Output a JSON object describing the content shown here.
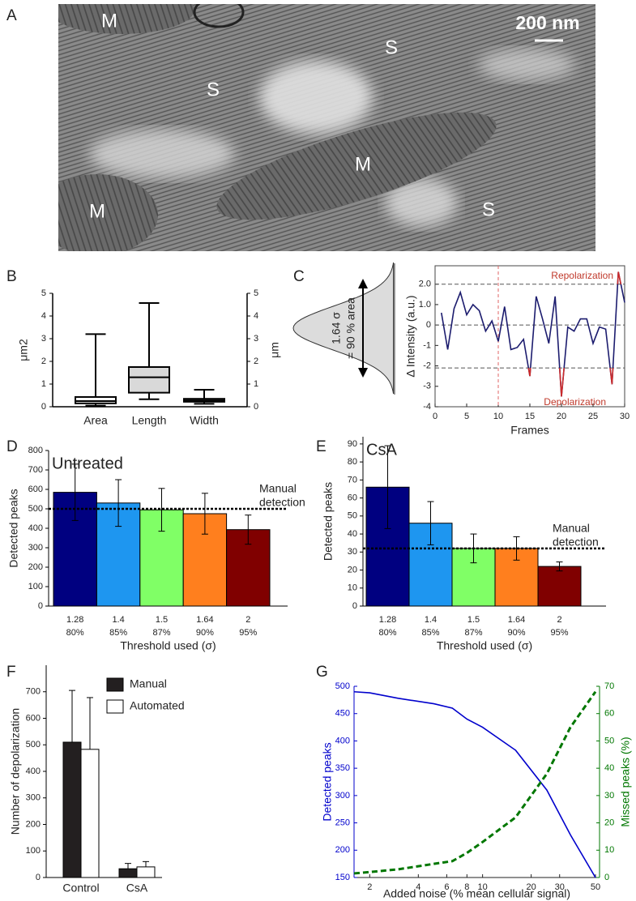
{
  "chart_data": [
    {
      "panel": "A",
      "type": "image",
      "labels": [
        "M",
        "S",
        "S",
        "M",
        "M",
        "S"
      ],
      "scale_bar": "200 nm"
    },
    {
      "panel": "B",
      "type": "box",
      "categories": [
        "Area",
        "Length",
        "Width"
      ],
      "boxes": [
        {
          "whisker_low": 0.05,
          "q1": 0.15,
          "median": 0.25,
          "q3": 0.43,
          "whisker_high": 3.2,
          "fill": "#ffffff"
        },
        {
          "whisker_low": 0.33,
          "q1": 0.62,
          "median": 1.3,
          "q3": 1.75,
          "whisker_high": 4.57,
          "fill": "#d9d9d9"
        },
        {
          "whisker_low": 0.13,
          "q1": 0.22,
          "median": 0.28,
          "q3": 0.35,
          "whisker_high": 0.75,
          "fill": "#ffffff",
          "axis": "y2"
        }
      ],
      "y_label": "μm2",
      "y2_label": "μm",
      "ylim": [
        0,
        5
      ],
      "yticks": [
        0,
        1,
        2,
        3,
        4,
        5
      ],
      "y2lim": [
        0,
        5
      ],
      "y2ticks": [
        0,
        1,
        2,
        3,
        4,
        5
      ]
    },
    {
      "panel": "C",
      "type": "line",
      "distribution_labels": [
        "1.64 σ",
        "= 90 % area"
      ],
      "x": [
        1,
        2,
        3,
        4,
        5,
        6,
        7,
        8,
        9,
        10,
        11,
        12,
        13,
        14,
        15,
        16,
        17,
        18,
        19,
        20,
        21,
        22,
        23,
        24,
        25,
        26,
        27,
        28,
        29,
        30
      ],
      "series": [
        {
          "color": "#1c1c6e",
          "values": [
            0.6,
            -1.2,
            0.8,
            1.6,
            0.5,
            1.0,
            0.7,
            -0.3,
            0.2,
            -0.8,
            0.9,
            -1.2,
            -1.1,
            -0.7,
            -2.5,
            1.4,
            0.3,
            -0.9,
            1.4,
            -3.5,
            -0.1,
            -0.3,
            0.3,
            0.3,
            -0.9,
            -0.1,
            -0.2,
            -2.9,
            2.6,
            1.1
          ]
        }
      ],
      "highlight_color": "#cc2b2b",
      "hlines": [
        2.0,
        0,
        -2.1
      ],
      "vline": 10,
      "vline_color": "#e06666",
      "annotations": [
        "Repolarization",
        "Depolarization"
      ],
      "annotation_color": "#c0392b",
      "x_label": "Frames",
      "y_label": "Δ Intensity (a.u.)",
      "xlim": [
        0,
        30
      ],
      "xticks": [
        0,
        5,
        10,
        15,
        20,
        25,
        30
      ],
      "ylim": [
        -4,
        2.9
      ],
      "yticks": [
        {
          "value": 2,
          "label": "2.0"
        },
        {
          "value": 1,
          "label": "1.0"
        },
        0,
        -1,
        -2,
        -3,
        -4
      ]
    },
    {
      "panel": "D",
      "type": "bar",
      "title": "Untreated",
      "categories": [
        "1.28",
        "1.4",
        "1.5",
        "1.64",
        "2"
      ],
      "category_sublabels": [
        "80%",
        "85%",
        "87%",
        "90%",
        "95%"
      ],
      "values": [
        585,
        530,
        495,
        475,
        393
      ],
      "errors": [
        145,
        120,
        110,
        105,
        75
      ],
      "colors": [
        "#000080",
        "#1e96f0",
        "#80ff66",
        "#ff7f1e",
        "#800000"
      ],
      "reference_line": 500,
      "reference_label": [
        "Manual",
        "detection"
      ],
      "x_label": "Threshold used (σ)",
      "y_label": "Detected peaks",
      "ylim": [
        0,
        800
      ],
      "yticks": [
        0,
        100,
        200,
        300,
        400,
        500,
        600,
        700,
        800
      ]
    },
    {
      "panel": "E",
      "type": "bar",
      "title": "CsA",
      "categories": [
        "1.28",
        "1.4",
        "1.5",
        "1.64",
        "2"
      ],
      "category_sublabels": [
        "80%",
        "85%",
        "87%",
        "90%",
        "95%"
      ],
      "values": [
        66,
        46,
        32,
        32,
        22
      ],
      "errors": [
        23,
        12,
        8,
        6.5,
        2.5
      ],
      "colors": [
        "#000080",
        "#1e96f0",
        "#80ff66",
        "#ff7f1e",
        "#800000"
      ],
      "reference_line": 32,
      "reference_label": [
        "Manual",
        "detection"
      ],
      "x_label": "Threshold used (σ)",
      "y_label": "Detected peaks",
      "ylim": [
        0,
        94
      ],
      "yticks": [
        0,
        10,
        20,
        30,
        40,
        50,
        60,
        70,
        80,
        90
      ]
    },
    {
      "panel": "F",
      "type": "bar",
      "categories": [
        "Control",
        "CsA"
      ],
      "series": [
        {
          "name": "Manual",
          "color": "#231f20",
          "values": [
            510,
            33
          ],
          "errors": [
            195,
            20
          ]
        },
        {
          "name": "Automated",
          "color": "#ffffff",
          "values": [
            483,
            40
          ],
          "errors": [
            195,
            20
          ]
        }
      ],
      "y_label": "Number of depolarization",
      "ylim": [
        0,
        800
      ],
      "yticks": [
        0,
        100,
        200,
        300,
        400,
        500,
        600,
        700
      ]
    },
    {
      "panel": "G",
      "type": "line",
      "log_x": true,
      "x": [
        1.6,
        2,
        3,
        5,
        6.5,
        8,
        10,
        16,
        25,
        35,
        50
      ],
      "series": [
        {
          "color": "#0000cc",
          "values": [
            490,
            488,
            478,
            468,
            460,
            440,
            425,
            383,
            310,
            228,
            150
          ]
        },
        {
          "color": "#007700",
          "dash": true,
          "axis": "y2",
          "values": [
            1.5,
            2,
            3,
            5,
            6,
            9,
            13,
            22,
            38,
            55,
            68
          ]
        }
      ],
      "x_label": "Added noise (% mean cellular signal)",
      "y_label": "Detected peaks",
      "y2_label": "Missed peaks (%)",
      "xlim": [
        1.6,
        53
      ],
      "xticks": [
        2,
        4,
        6,
        8,
        10,
        20,
        30,
        50
      ],
      "ylim": [
        150,
        500
      ],
      "yticks": [
        150,
        200,
        250,
        300,
        350,
        400,
        450,
        500
      ],
      "y2lim": [
        0,
        70
      ],
      "y2ticks": [
        0,
        10,
        20,
        30,
        40,
        50,
        60,
        70
      ]
    }
  ]
}
